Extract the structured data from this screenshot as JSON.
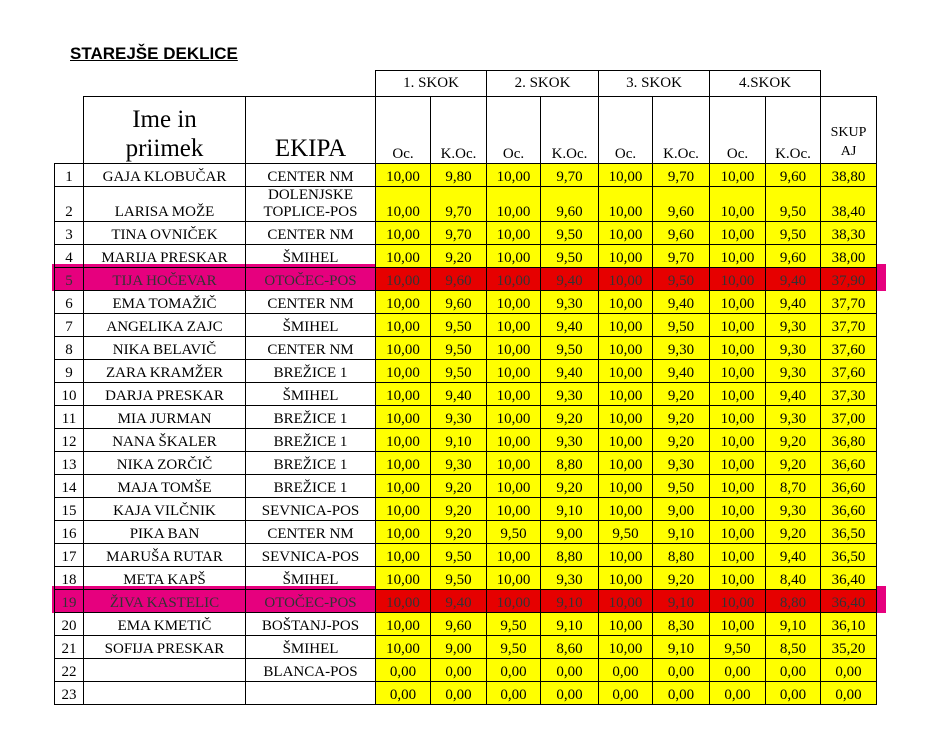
{
  "title": "STAREJŠE DEKLICE",
  "table": {
    "jump_headers": [
      "1. SKOK",
      "2. SKOK",
      "3. SKOK",
      "4.SKOK"
    ],
    "header": {
      "name": "Ime in priimek",
      "team": "EKIPA",
      "sub": [
        "Oc.",
        "K.Oc.",
        "Oc.",
        "K.Oc.",
        "Oc.",
        "K.Oc.",
        "Oc.",
        "K.Oc."
      ],
      "total": "SKUP AJ"
    },
    "rows": [
      [
        "1",
        "GAJA KLOBUČAR",
        "CENTER NM",
        "10,00",
        "9,80",
        "10,00",
        "9,70",
        "10,00",
        "9,70",
        "10,00",
        "9,60",
        "38,80"
      ],
      [
        "2",
        "LARISA MOŽE",
        "DOLENJSKE TOPLICE-POS",
        "10,00",
        "9,70",
        "10,00",
        "9,60",
        "10,00",
        "9,60",
        "10,00",
        "9,50",
        "38,40"
      ],
      [
        "3",
        "TINA OVNIČEK",
        "CENTER NM",
        "10,00",
        "9,70",
        "10,00",
        "9,50",
        "10,00",
        "9,60",
        "10,00",
        "9,50",
        "38,30"
      ],
      [
        "4",
        "MARIJA PRESKAR",
        "ŠMIHEL",
        "10,00",
        "9,20",
        "10,00",
        "9,50",
        "10,00",
        "9,70",
        "10,00",
        "9,60",
        "38,00"
      ],
      [
        "5",
        "TIJA HOČEVAR",
        "OTOČEC-POS",
        "10,00",
        "9,60",
        "10,00",
        "9,40",
        "10,00",
        "9,50",
        "10,00",
        "9,40",
        "37,90"
      ],
      [
        "6",
        "EMA TOMAŽIČ",
        "CENTER NM",
        "10,00",
        "9,60",
        "10,00",
        "9,30",
        "10,00",
        "9,40",
        "10,00",
        "9,40",
        "37,70"
      ],
      [
        "7",
        "ANGELIKA ZAJC",
        "ŠMIHEL",
        "10,00",
        "9,50",
        "10,00",
        "9,40",
        "10,00",
        "9,50",
        "10,00",
        "9,30",
        "37,70"
      ],
      [
        "8",
        "NIKA BELAVIČ",
        "CENTER NM",
        "10,00",
        "9,50",
        "10,00",
        "9,50",
        "10,00",
        "9,30",
        "10,00",
        "9,30",
        "37,60"
      ],
      [
        "9",
        "ZARA KRAMŽER",
        "BREŽICE 1",
        "10,00",
        "9,50",
        "10,00",
        "9,40",
        "10,00",
        "9,40",
        "10,00",
        "9,30",
        "37,60"
      ],
      [
        "10",
        "DARJA PRESKAR",
        "ŠMIHEL",
        "10,00",
        "9,40",
        "10,00",
        "9,30",
        "10,00",
        "9,20",
        "10,00",
        "9,40",
        "37,30"
      ],
      [
        "11",
        "MIA JURMAN",
        "BREŽICE 1",
        "10,00",
        "9,30",
        "10,00",
        "9,20",
        "10,00",
        "9,20",
        "10,00",
        "9,30",
        "37,00"
      ],
      [
        "12",
        "NANA ŠKALER",
        "BREŽICE 1",
        "10,00",
        "9,10",
        "10,00",
        "9,30",
        "10,00",
        "9,20",
        "10,00",
        "9,20",
        "36,80"
      ],
      [
        "13",
        "NIKA ZORČIČ",
        "BREŽICE 1",
        "10,00",
        "9,30",
        "10,00",
        "8,80",
        "10,00",
        "9,30",
        "10,00",
        "9,20",
        "36,60"
      ],
      [
        "14",
        "MAJA TOMŠE",
        "BREŽICE 1",
        "10,00",
        "9,20",
        "10,00",
        "9,20",
        "10,00",
        "9,50",
        "10,00",
        "8,70",
        "36,60"
      ],
      [
        "15",
        "KAJA VILČNIK",
        "SEVNICA-POS",
        "10,00",
        "9,20",
        "10,00",
        "9,10",
        "10,00",
        "9,00",
        "10,00",
        "9,30",
        "36,60"
      ],
      [
        "16",
        "PIKA BAN",
        "CENTER NM",
        "10,00",
        "9,20",
        "9,50",
        "9,00",
        "9,50",
        "9,10",
        "10,00",
        "9,20",
        "36,50"
      ],
      [
        "17",
        "MARUŠA RUTAR",
        "SEVNICA-POS",
        "10,00",
        "9,50",
        "10,00",
        "8,80",
        "10,00",
        "8,80",
        "10,00",
        "9,40",
        "36,50"
      ],
      [
        "18",
        "META KAPŠ",
        "ŠMIHEL",
        "10,00",
        "9,50",
        "10,00",
        "9,30",
        "10,00",
        "9,20",
        "10,00",
        "8,40",
        "36,40"
      ],
      [
        "19",
        "ŽIVA KASTELIC",
        "OTOČEC-POS",
        "10,00",
        "9,40",
        "10,00",
        "9,10",
        "10,00",
        "9,10",
        "10,00",
        "8,80",
        "36,40"
      ],
      [
        "20",
        "EMA KMETIČ",
        "BOŠTANJ-POS",
        "10,00",
        "9,60",
        "9,50",
        "9,10",
        "10,00",
        "8,30",
        "10,00",
        "9,10",
        "36,10"
      ],
      [
        "21",
        "SOFIJA PRESKAR",
        "ŠMIHEL",
        "10,00",
        "9,00",
        "9,50",
        "8,60",
        "10,00",
        "9,10",
        "9,50",
        "8,50",
        "35,20"
      ],
      [
        "22",
        null,
        "BLANCA-POS",
        "0,00",
        "0,00",
        "0,00",
        "0,00",
        "0,00",
        "0,00",
        "0,00",
        "0,00",
        "0,00"
      ],
      [
        "23",
        null,
        null,
        "0,00",
        "0,00",
        "0,00",
        "0,00",
        "0,00",
        "0,00",
        "0,00",
        "0,00",
        "0,00"
      ]
    ]
  }
}
